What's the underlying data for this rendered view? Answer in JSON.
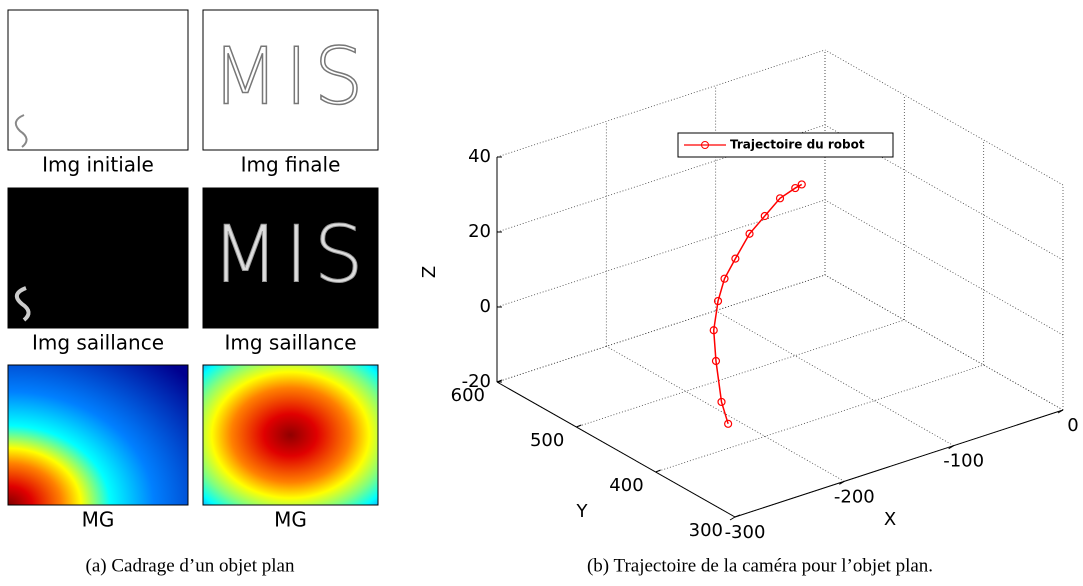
{
  "figure": {
    "panel_a": {
      "images": [
        {
          "caption": "Img initiale"
        },
        {
          "caption": "Img finale",
          "text": "MIS"
        },
        {
          "caption": "Img saillance"
        },
        {
          "caption": "Img saillance",
          "text": "MIS"
        },
        {
          "caption": "MG"
        },
        {
          "caption": "MG"
        }
      ],
      "caption": "(a) Cadrage d’un objet plan"
    },
    "panel_b": {
      "caption": "(b) Trajectoire de la caméra pour l’objet plan."
    }
  },
  "chart_data": {
    "type": "line3d",
    "xlabel": "X",
    "ylabel": "Y",
    "zlabel": "Z",
    "series": [
      {
        "name": "Trajectoire du robot",
        "color": "#ff0000",
        "x": [
          -270,
          -263,
          -255,
          -244,
          -227,
          -208,
          -185,
          -159,
          -132,
          -105,
          -78,
          -59
        ],
        "y": [
          350,
          368,
          386,
          404,
          422,
          440,
          458,
          476,
          494,
          512,
          530,
          548
        ],
        "z": [
          -4,
          -1,
          7,
          12,
          16,
          18,
          19,
          21,
          21,
          21,
          19,
          16
        ]
      }
    ],
    "xlim": [
      -300,
      0
    ],
    "ylim": [
      300,
      600
    ],
    "zlim": [
      -20,
      40
    ],
    "xticks": [
      -300,
      -200,
      -100,
      0
    ],
    "yticks": [
      300,
      400,
      500,
      600
    ],
    "zticks": [
      -20,
      0,
      20,
      40
    ],
    "grid": true,
    "legend": "top"
  }
}
